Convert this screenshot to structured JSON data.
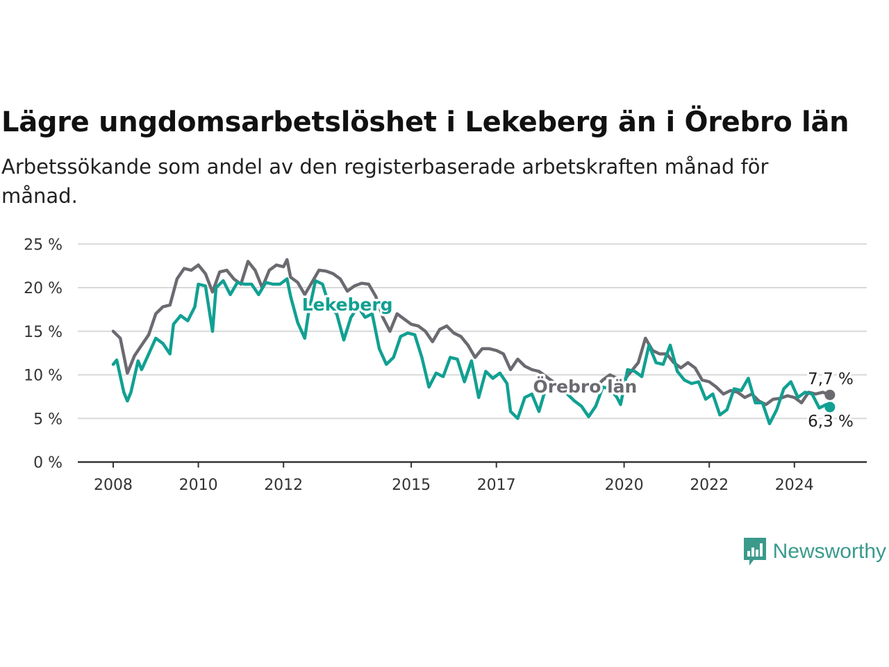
{
  "title": "Lägre ungdomsarbetslöshet i Lekeberg än i Örebro län",
  "subtitle": "Arbetssökande som andel av den registerbaserade arbetskraften månad för månad.",
  "brand": "Newsworthy",
  "colors": {
    "lekeberg": "#11a092",
    "orebro": "#6b6a70",
    "grid": "#d9d9d9",
    "axis": "#333333",
    "brand": "#3a9a8c"
  },
  "chart_data": {
    "type": "line",
    "title": "Lägre ungdomsarbetslöshet i Lekeberg än i Örebro län",
    "subtitle": "Arbetssökande som andel av den registerbaserade arbetskraften månad för månad.",
    "xlabel": "",
    "ylabel": "",
    "x_ticks": [
      "2008",
      "2010",
      "2012",
      "2015",
      "2017",
      "2020",
      "2022",
      "2024"
    ],
    "y_ticks": [
      "0 %",
      "5 %",
      "10 %",
      "15 %",
      "20 %",
      "25 %"
    ],
    "ylim": [
      0,
      25
    ],
    "xlim": [
      "2008-01",
      "2024-11"
    ],
    "grid": true,
    "legend": "inline labels",
    "series": [
      {
        "name": "Örebro län",
        "end_label": "7,7 %",
        "points": [
          [
            "2008-01",
            15.0
          ],
          [
            "2008-03",
            14.2
          ],
          [
            "2008-05",
            10.2
          ],
          [
            "2008-07",
            12.2
          ],
          [
            "2008-09",
            13.4
          ],
          [
            "2008-11",
            14.6
          ],
          [
            "2009-01",
            17.0
          ],
          [
            "2009-03",
            17.8
          ],
          [
            "2009-05",
            18.0
          ],
          [
            "2009-07",
            21.0
          ],
          [
            "2009-09",
            22.2
          ],
          [
            "2009-11",
            22.0
          ],
          [
            "2010-01",
            22.6
          ],
          [
            "2010-03",
            21.6
          ],
          [
            "2010-05",
            19.5
          ],
          [
            "2010-07",
            21.8
          ],
          [
            "2010-09",
            22.0
          ],
          [
            "2010-11",
            21.0
          ],
          [
            "2011-01",
            20.4
          ],
          [
            "2011-03",
            23.0
          ],
          [
            "2011-05",
            22.0
          ],
          [
            "2011-07",
            20.0
          ],
          [
            "2011-09",
            22.0
          ],
          [
            "2011-11",
            22.6
          ],
          [
            "2012-01",
            22.4
          ],
          [
            "2012-02",
            23.2
          ],
          [
            "2012-03",
            21.2
          ],
          [
            "2012-05",
            20.6
          ],
          [
            "2012-07",
            19.2
          ],
          [
            "2012-09",
            20.6
          ],
          [
            "2012-11",
            22.0
          ],
          [
            "2013-01",
            21.9
          ],
          [
            "2013-03",
            21.6
          ],
          [
            "2013-05",
            21.0
          ],
          [
            "2013-07",
            19.6
          ],
          [
            "2013-09",
            20.2
          ],
          [
            "2013-11",
            20.5
          ],
          [
            "2014-01",
            20.4
          ],
          [
            "2014-03",
            19.0
          ],
          [
            "2014-05",
            16.6
          ],
          [
            "2014-07",
            15.0
          ],
          [
            "2014-09",
            17.0
          ],
          [
            "2014-11",
            16.4
          ],
          [
            "2015-01",
            15.8
          ],
          [
            "2015-03",
            15.6
          ],
          [
            "2015-05",
            15.0
          ],
          [
            "2015-07",
            13.8
          ],
          [
            "2015-09",
            15.2
          ],
          [
            "2015-11",
            15.6
          ],
          [
            "2016-01",
            14.8
          ],
          [
            "2016-03",
            14.4
          ],
          [
            "2016-05",
            13.4
          ],
          [
            "2016-07",
            12.0
          ],
          [
            "2016-09",
            13.0
          ],
          [
            "2016-11",
            13.0
          ],
          [
            "2017-01",
            12.8
          ],
          [
            "2017-03",
            12.4
          ],
          [
            "2017-05",
            10.6
          ],
          [
            "2017-07",
            11.8
          ],
          [
            "2017-09",
            11.0
          ],
          [
            "2017-11",
            10.6
          ],
          [
            "2018-01",
            10.4
          ],
          [
            "2018-03",
            9.8
          ],
          [
            "2018-05",
            9.2
          ],
          [
            "2018-07",
            8.6
          ],
          [
            "2018-09",
            8.8
          ],
          [
            "2018-11",
            8.6
          ],
          [
            "2019-01",
            9.0
          ],
          [
            "2019-03",
            8.6
          ],
          [
            "2019-05",
            8.6
          ],
          [
            "2019-07",
            9.4
          ],
          [
            "2019-09",
            10.0
          ],
          [
            "2019-11",
            9.6
          ],
          [
            "2020-01",
            9.4
          ],
          [
            "2020-03",
            10.4
          ],
          [
            "2020-05",
            11.4
          ],
          [
            "2020-07",
            14.2
          ],
          [
            "2020-09",
            12.8
          ],
          [
            "2020-11",
            12.4
          ],
          [
            "2021-01",
            12.4
          ],
          [
            "2021-03",
            11.4
          ],
          [
            "2021-05",
            10.8
          ],
          [
            "2021-07",
            11.4
          ],
          [
            "2021-09",
            10.8
          ],
          [
            "2021-11",
            9.4
          ],
          [
            "2022-01",
            9.2
          ],
          [
            "2022-03",
            8.6
          ],
          [
            "2022-05",
            7.8
          ],
          [
            "2022-07",
            8.2
          ],
          [
            "2022-09",
            8.0
          ],
          [
            "2022-11",
            7.4
          ],
          [
            "2023-01",
            7.8
          ],
          [
            "2023-03",
            7.0
          ],
          [
            "2023-05",
            6.6
          ],
          [
            "2023-07",
            7.2
          ],
          [
            "2023-09",
            7.3
          ],
          [
            "2023-11",
            7.6
          ],
          [
            "2024-01",
            7.4
          ],
          [
            "2024-03",
            6.8
          ],
          [
            "2024-05",
            8.0
          ],
          [
            "2024-07",
            7.8
          ],
          [
            "2024-09",
            8.0
          ],
          [
            "2024-11",
            7.7
          ]
        ]
      },
      {
        "name": "Lekeberg",
        "end_label": "6,3 %",
        "points": [
          [
            "2008-01",
            11.2
          ],
          [
            "2008-02",
            11.7
          ],
          [
            "2008-04",
            8.0
          ],
          [
            "2008-05",
            7.0
          ],
          [
            "2008-06",
            8.0
          ],
          [
            "2008-08",
            11.6
          ],
          [
            "2008-09",
            10.6
          ],
          [
            "2008-11",
            12.4
          ],
          [
            "2009-01",
            14.2
          ],
          [
            "2009-03",
            13.6
          ],
          [
            "2009-05",
            12.4
          ],
          [
            "2009-06",
            15.8
          ],
          [
            "2009-08",
            16.8
          ],
          [
            "2009-10",
            16.2
          ],
          [
            "2009-12",
            17.8
          ],
          [
            "2010-01",
            20.4
          ],
          [
            "2010-03",
            20.2
          ],
          [
            "2010-05",
            15.0
          ],
          [
            "2010-06",
            20.0
          ],
          [
            "2010-08",
            20.8
          ],
          [
            "2010-10",
            19.2
          ],
          [
            "2010-12",
            20.6
          ],
          [
            "2011-02",
            20.4
          ],
          [
            "2011-04",
            20.4
          ],
          [
            "2011-06",
            19.2
          ],
          [
            "2011-08",
            20.6
          ],
          [
            "2011-10",
            20.4
          ],
          [
            "2011-12",
            20.4
          ],
          [
            "2012-02",
            21.0
          ],
          [
            "2012-03",
            19.0
          ],
          [
            "2012-05",
            16.0
          ],
          [
            "2012-07",
            14.2
          ],
          [
            "2012-08",
            17.0
          ],
          [
            "2012-10",
            20.8
          ],
          [
            "2012-12",
            20.4
          ],
          [
            "2013-02",
            17.8
          ],
          [
            "2013-04",
            17.0
          ],
          [
            "2013-06",
            14.0
          ],
          [
            "2013-08",
            16.6
          ],
          [
            "2013-10",
            17.8
          ],
          [
            "2013-12",
            16.6
          ],
          [
            "2014-02",
            17.0
          ],
          [
            "2014-04",
            13.0
          ],
          [
            "2014-06",
            11.2
          ],
          [
            "2014-08",
            12.0
          ],
          [
            "2014-10",
            14.4
          ],
          [
            "2014-12",
            14.8
          ],
          [
            "2015-02",
            14.6
          ],
          [
            "2015-04",
            12.0
          ],
          [
            "2015-06",
            8.6
          ],
          [
            "2015-08",
            10.2
          ],
          [
            "2015-10",
            9.8
          ],
          [
            "2015-12",
            12.0
          ],
          [
            "2016-02",
            11.8
          ],
          [
            "2016-04",
            9.2
          ],
          [
            "2016-06",
            11.6
          ],
          [
            "2016-08",
            7.4
          ],
          [
            "2016-10",
            10.4
          ],
          [
            "2016-12",
            9.6
          ],
          [
            "2017-02",
            10.2
          ],
          [
            "2017-04",
            9.0
          ],
          [
            "2017-05",
            5.8
          ],
          [
            "2017-07",
            5.0
          ],
          [
            "2017-09",
            7.4
          ],
          [
            "2017-11",
            7.8
          ],
          [
            "2018-01",
            5.8
          ],
          [
            "2018-03",
            8.6
          ],
          [
            "2018-05",
            8.6
          ],
          [
            "2018-07",
            8.2
          ],
          [
            "2018-09",
            7.8
          ],
          [
            "2018-11",
            7.0
          ],
          [
            "2019-01",
            6.4
          ],
          [
            "2019-03",
            5.2
          ],
          [
            "2019-05",
            6.4
          ],
          [
            "2019-07",
            8.6
          ],
          [
            "2019-09",
            8.4
          ],
          [
            "2019-11",
            7.4
          ],
          [
            "2019-12",
            6.6
          ],
          [
            "2020-02",
            10.6
          ],
          [
            "2020-04",
            10.4
          ],
          [
            "2020-06",
            9.8
          ],
          [
            "2020-08",
            13.4
          ],
          [
            "2020-10",
            11.4
          ],
          [
            "2020-12",
            11.2
          ],
          [
            "2021-02",
            13.4
          ],
          [
            "2021-04",
            10.4
          ],
          [
            "2021-06",
            9.4
          ],
          [
            "2021-08",
            9.0
          ],
          [
            "2021-10",
            9.2
          ],
          [
            "2021-12",
            7.2
          ],
          [
            "2022-02",
            7.8
          ],
          [
            "2022-04",
            5.4
          ],
          [
            "2022-06",
            6.0
          ],
          [
            "2022-08",
            8.4
          ],
          [
            "2022-10",
            8.2
          ],
          [
            "2022-12",
            9.6
          ],
          [
            "2023-02",
            6.8
          ],
          [
            "2023-04",
            6.8
          ],
          [
            "2023-06",
            4.4
          ],
          [
            "2023-08",
            6.0
          ],
          [
            "2023-10",
            8.4
          ],
          [
            "2023-12",
            9.2
          ],
          [
            "2024-02",
            7.4
          ],
          [
            "2024-04",
            8.0
          ],
          [
            "2024-06",
            7.8
          ],
          [
            "2024-08",
            6.2
          ],
          [
            "2024-10",
            6.6
          ],
          [
            "2024-11",
            6.3
          ]
        ]
      }
    ]
  }
}
